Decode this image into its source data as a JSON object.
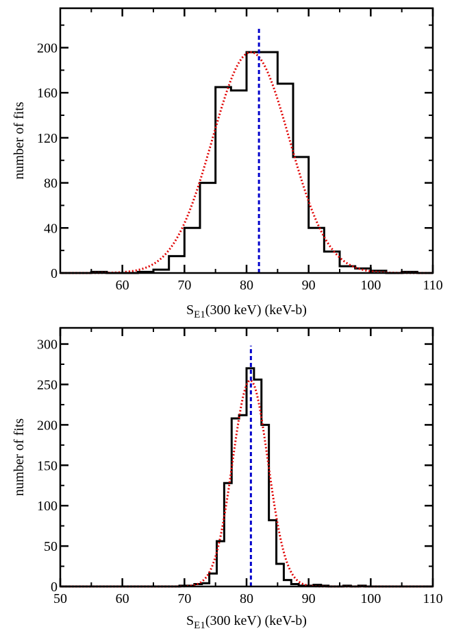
{
  "chart_data": [
    {
      "type": "histogram",
      "xlabel": {
        "base": "S",
        "sub": "E1",
        "rest": "(300 keV)  (keV-b)"
      },
      "ylabel": "number of fits",
      "xlim": [
        50,
        110
      ],
      "ylim": [
        0,
        235
      ],
      "xticks": [
        60,
        70,
        80,
        90,
        100,
        110
      ],
      "xtick_labels": [
        "60",
        "70",
        "80",
        "90",
        "100",
        "110"
      ],
      "yticks": [
        0,
        40,
        80,
        120,
        160,
        200
      ],
      "ytick_labels": [
        "0",
        "40",
        "80",
        "120",
        "160",
        "200"
      ],
      "bin_edges": [
        50,
        52.5,
        55,
        57.5,
        60,
        62.5,
        65,
        67.5,
        70,
        72.5,
        75,
        77.5,
        80,
        82.5,
        85,
        87.5,
        90,
        92.5,
        95,
        97.5,
        100,
        102.5,
        105,
        107.5,
        110
      ],
      "counts": [
        0,
        0,
        1,
        0,
        0,
        1,
        3,
        15,
        40,
        80,
        165,
        162,
        196,
        196,
        168,
        103,
        40,
        19,
        6,
        4,
        2,
        0,
        1,
        0
      ],
      "gaussian_fit": {
        "mean": 80.7,
        "sigma": 6.2,
        "amplitude": 196
      },
      "mean_line_x": 82.0,
      "colors": {
        "histogram": "#000000",
        "fit": "#e00000",
        "mean_line": "#0000cc"
      }
    },
    {
      "type": "histogram",
      "xlabel": {
        "base": "S",
        "sub": "E1",
        "rest": "(300 keV)  (keV-b)"
      },
      "ylabel": "number of fits",
      "xlim": [
        50,
        110
      ],
      "ylim": [
        0,
        320
      ],
      "xticks": [
        50,
        60,
        70,
        80,
        90,
        100,
        110
      ],
      "xtick_labels": [
        "50",
        "60",
        "70",
        "80",
        "90",
        "100",
        "110"
      ],
      "yticks": [
        0,
        50,
        100,
        150,
        200,
        250,
        300
      ],
      "ytick_labels": [
        "0",
        "50",
        "100",
        "150",
        "200",
        "250",
        "300"
      ],
      "bin_edges": [
        50,
        51.2,
        52.4,
        53.6,
        54.8,
        56,
        57.2,
        58.4,
        59.6,
        60.8,
        62,
        63.2,
        64.4,
        65.6,
        66.8,
        68,
        69.2,
        70.4,
        71.6,
        72.8,
        74,
        75.2,
        76.4,
        77.6,
        78.8,
        80,
        81.2,
        82.4,
        83.6,
        84.8,
        86,
        87.2,
        88.4,
        89.6,
        90.8,
        92,
        93.2,
        94.4,
        95.6,
        96.8,
        98,
        99.2,
        100.4,
        101.6,
        102.8,
        104,
        105.2,
        106.4,
        107.6,
        108.8,
        110
      ],
      "counts": [
        0,
        0,
        0,
        0,
        0,
        0,
        0,
        0,
        0,
        0,
        0,
        0,
        0,
        0,
        0,
        0,
        1,
        1,
        3,
        4,
        16,
        56,
        128,
        208,
        212,
        270,
        256,
        200,
        82,
        28,
        8,
        3,
        1,
        1,
        2,
        1,
        0,
        0,
        1,
        0,
        1,
        0,
        0,
        0,
        0,
        0,
        0,
        0,
        0,
        0
      ],
      "gaussian_fit": {
        "mean": 80.6,
        "sigma": 2.85,
        "amplitude": 255
      },
      "mean_line_x": 80.7,
      "colors": {
        "histogram": "#000000",
        "fit": "#e00000",
        "mean_line": "#0000cc"
      }
    }
  ]
}
